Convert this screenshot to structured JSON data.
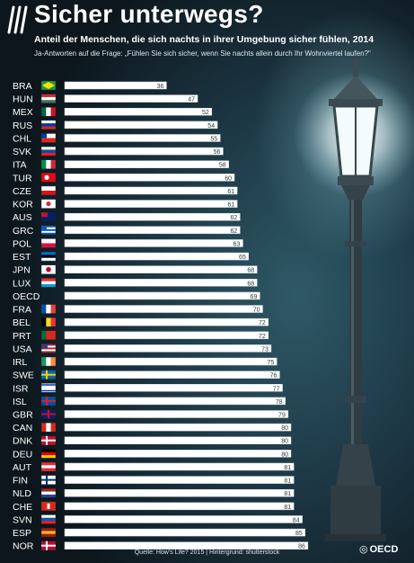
{
  "header": {
    "title": "Sicher unterwegs?",
    "subtitle": "Anteil der Menschen, die sich nachts in ihrer Umgebung sicher fühlen, 2014",
    "question": "Ja-Antworten auf die Frage: „Fühlen Sie sich sicher, wenn Sie nachts allein durch Ihr Wohnviertel laufen?\""
  },
  "footer": {
    "source": "Quelle: How's Life? 2015 | Hintergrund: shutterstock",
    "logo_text": "OECD"
  },
  "colors": {
    "bar": "#ffffff",
    "bar_outline": "#d0d8dc",
    "text": "#ffffff",
    "value_text": "#2b3a40"
  },
  "chart_data": {
    "type": "bar",
    "orientation": "horizontal",
    "title": "Sicher unterwegs?",
    "categories": [
      "BRA",
      "HUN",
      "MEX",
      "RUS",
      "CHL",
      "SVK",
      "ITA",
      "TUR",
      "CZE",
      "KOR",
      "AUS",
      "GRC",
      "POL",
      "EST",
      "JPN",
      "LUX",
      "OECD",
      "FRA",
      "BEL",
      "PRT",
      "USA",
      "IRL",
      "SWE",
      "ISR",
      "ISL",
      "GBR",
      "CAN",
      "DNK",
      "DEU",
      "AUT",
      "FIN",
      "NLD",
      "CHE",
      "SVN",
      "ESP",
      "NOR"
    ],
    "values": [
      36,
      47,
      52,
      54,
      55,
      56,
      58,
      60,
      61,
      61,
      62,
      62,
      63,
      65,
      68,
      68,
      69,
      70,
      72,
      72,
      73,
      75,
      76,
      77,
      78,
      79,
      80,
      80,
      80,
      81,
      81,
      81,
      81,
      84,
      85,
      86
    ],
    "xlim": [
      0,
      100
    ],
    "grid": false,
    "legend": "none"
  }
}
